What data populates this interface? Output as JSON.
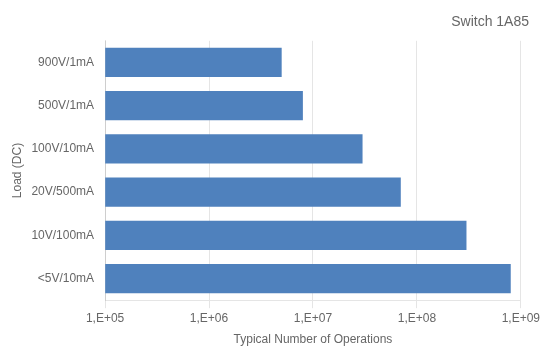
{
  "chart_data": {
    "type": "bar",
    "orientation": "horizontal",
    "title": "Switch 1A85",
    "ylabel": "Load (DC)",
    "xlabel": "Typical Number of Operations",
    "categories": [
      "900V/1mA",
      "500V/1mA",
      "100V/10mA",
      "20V/500mA",
      "10V/100mA",
      "<5V/10mA"
    ],
    "values": [
      5000000,
      8000000,
      30000000,
      70000000,
      300000000,
      800000000
    ],
    "color": "#4F81BD",
    "log": "x",
    "xlim": [
      100000,
      1000000000
    ],
    "xticks": [
      {
        "value": 100000,
        "label": "1,E+05"
      },
      {
        "value": 1000000,
        "label": "1,E+06"
      },
      {
        "value": 10000000,
        "label": "1,E+07"
      },
      {
        "value": 100000000,
        "label": "1,E+08"
      },
      {
        "value": 1000000000,
        "label": "1,E+09"
      }
    ],
    "grid": true
  }
}
